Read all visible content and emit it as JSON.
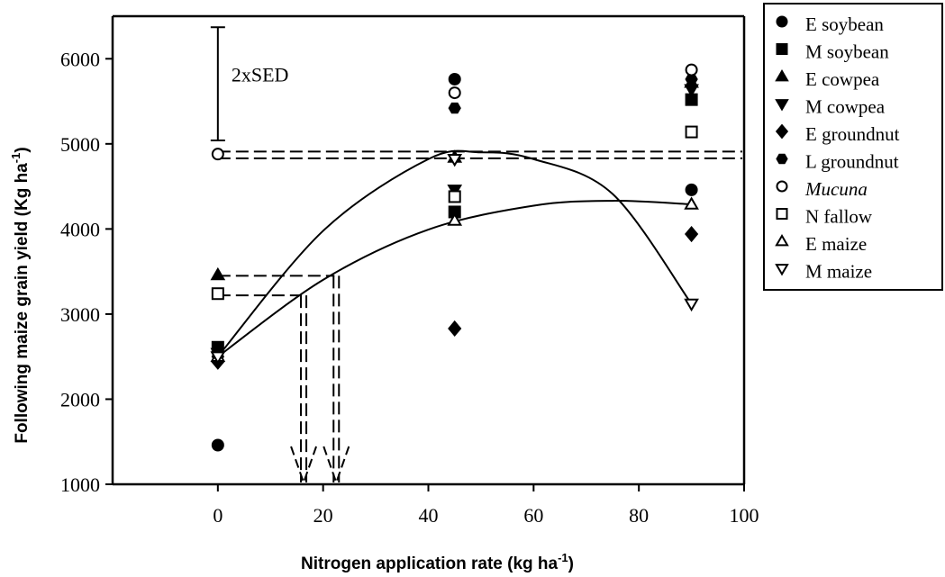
{
  "chart_data": {
    "type": "scatter",
    "xlabel": "Nitrogen application rate (kg ha",
    "xlabel_sup": "-1",
    "xlabel_end": ")",
    "ylabel": "Following maize grain yield (Kg ha",
    "ylabel_sup": "-1",
    "ylabel_end": ")",
    "xlim": [
      -20,
      100
    ],
    "ylim": [
      1000,
      6500
    ],
    "x_ticks": [
      0,
      20,
      40,
      60,
      80,
      100
    ],
    "y_ticks": [
      1000,
      2000,
      3000,
      4000,
      5000,
      6000
    ],
    "legend_position": "top-right-outside",
    "series": [
      {
        "name": "E soybean",
        "marker": "circle-filled",
        "x": [
          0,
          45,
          90
        ],
        "y": [
          1460,
          5760,
          4460
        ]
      },
      {
        "name": "M soybean",
        "marker": "square-filled",
        "x": [
          0,
          45,
          90
        ],
        "y": [
          2610,
          4200,
          5520
        ]
      },
      {
        "name": "E cowpea",
        "marker": "triangle-up-filled",
        "x": [
          0,
          45,
          90
        ],
        "y": [
          3460,
          4840,
          5720
        ]
      },
      {
        "name": "M cowpea",
        "marker": "triangle-down-filled",
        "x": [
          0,
          45,
          90
        ],
        "y": [
          2540,
          4460,
          5640
        ]
      },
      {
        "name": "E groundnut",
        "marker": "diamond-filled",
        "x": [
          0,
          45,
          90
        ],
        "y": [
          2440,
          2830,
          3940
        ]
      },
      {
        "name": "L groundnut",
        "marker": "hexagon-filled",
        "x": [
          0,
          45,
          90
        ],
        "y": [
          2500,
          5420,
          5760
        ]
      },
      {
        "name": "Mucuna",
        "marker": "circle-open",
        "x": [
          0,
          45,
          90
        ],
        "y": [
          4880,
          5600,
          5870
        ],
        "italic": true
      },
      {
        "name": "N fallow",
        "marker": "square-open",
        "x": [
          0,
          45,
          90
        ],
        "y": [
          3240,
          4380,
          5140
        ]
      },
      {
        "name": "E maize",
        "marker": "triangle-up-open",
        "x": [
          0,
          45,
          90
        ],
        "y": [
          2500,
          4100,
          4290
        ]
      },
      {
        "name": "M maize",
        "marker": "triangle-down-open",
        "x": [
          0,
          45,
          90
        ],
        "y": [
          2500,
          4820,
          3120
        ]
      }
    ],
    "fitted_curves": [
      {
        "points": [
          [
            0,
            2500
          ],
          [
            20,
            3978
          ],
          [
            40,
            4821
          ],
          [
            50,
            4900
          ],
          [
            60,
            4821
          ],
          [
            75,
            4412
          ],
          [
            90,
            3120
          ]
        ]
      },
      {
        "points": [
          [
            0,
            2500
          ],
          [
            20,
            3402
          ],
          [
            40,
            3993
          ],
          [
            60,
            4274
          ],
          [
            75,
            4331
          ],
          [
            90,
            4290
          ]
        ]
      }
    ],
    "reference_lines": [
      {
        "type": "horizontal-dashed",
        "y": 4910,
        "x_from": 0,
        "x_to": 100
      },
      {
        "type": "horizontal-dashed",
        "y": 4830,
        "x_from": 0,
        "x_to": 100
      },
      {
        "type": "horizontal-dashed",
        "y": 3450,
        "x_from": 0,
        "x_to": 22.5
      },
      {
        "type": "horizontal-dashed",
        "y": 3220,
        "x_from": 0,
        "x_to": 16.3
      },
      {
        "type": "vertical-arrow-dashed",
        "x": 16.3,
        "y_from": 3220,
        "y_to": 1000
      },
      {
        "type": "vertical-arrow-dashed",
        "x": 22.5,
        "y_from": 3450,
        "y_to": 1000
      }
    ],
    "error_bar": {
      "label": "2xSED",
      "x": 0,
      "y_low": 5040,
      "y_high": 6370
    }
  }
}
